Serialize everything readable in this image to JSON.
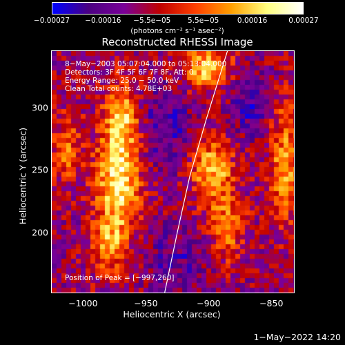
{
  "chart_data": {
    "type": "heatmap",
    "title": "Reconstructed RHESSI Image",
    "xlabel": "Heliocentric X (arcsec)",
    "ylabel": "Heliocentric Y (arcsec)",
    "xlim": [
      -1025,
      -832
    ],
    "ylim": [
      152,
      345
    ],
    "x_ticks": [
      -1000,
      -950,
      -900,
      -850
    ],
    "x_tick_labels": [
      "−1000",
      "−950",
      "−900",
      "−850"
    ],
    "y_ticks": [
      200,
      250,
      300
    ],
    "y_tick_labels": [
      "200",
      "250",
      "300"
    ],
    "colorbar": {
      "units": "(photons cm⁻² s⁻¹ asec⁻²)",
      "range": [
        -0.00027,
        0.00027
      ],
      "ticks": [
        -0.00027,
        -0.00016,
        -5.5e-05,
        5.5e-05,
        0.00016,
        0.00027
      ],
      "tick_labels": [
        "−0.00027",
        "−0.00016",
        "−5.5e−05",
        "5.5e−05",
        "0.00016",
        "0.00027"
      ],
      "colors": [
        "#0000ff",
        "#4b0082",
        "#7a0098",
        "#c00000",
        "#ff4000",
        "#ffa000",
        "#ffff80",
        "#ffffff"
      ]
    },
    "peak": {
      "x": -997,
      "y": 260
    },
    "limb_curve": [
      [
        -935,
        152
      ],
      [
        -925,
        200
      ],
      [
        -915,
        245
      ],
      [
        -902,
        290
      ],
      [
        -885,
        345
      ]
    ],
    "annotations": [
      "8−May−2003 05:07:04.000 to 05:13:04.000",
      "Detectors: 3F 4F 5F 6F 7F 8F, Att: 0",
      "Energy Range: 25.0 − 50.0 keV",
      "Clean      Total counts: 4.78E+03",
      "Position of Peak = [−997,260]"
    ]
  },
  "footer": {
    "date": "1−May−2022 14:20"
  }
}
